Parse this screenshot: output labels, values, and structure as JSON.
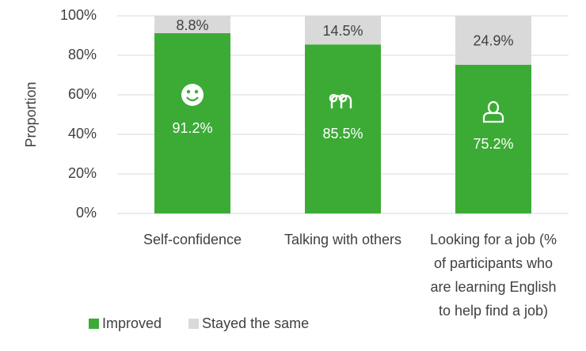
{
  "chart_data": {
    "type": "stacked_bar",
    "y_label": "Proportion",
    "categories": [
      "Self-confidence",
      "Talking with others",
      "Looking for a job (% of participants who are learning English to help find a job)"
    ],
    "series": [
      {
        "name": "Improved",
        "color": "#3cab36",
        "values": [
          91.2,
          85.5,
          75.2
        ],
        "value_labels": [
          "91.2%",
          "85.5%",
          "75.2%"
        ]
      },
      {
        "name": "Stayed the same",
        "color": "#d9d9d9",
        "values": [
          8.8,
          14.5,
          24.9
        ],
        "value_labels": [
          "8.8%",
          "14.5%",
          "24.9%"
        ]
      }
    ],
    "ylim": [
      0,
      100
    ],
    "yticks": [
      {
        "value": 0,
        "label": "0%"
      },
      {
        "value": 20,
        "label": "20%"
      },
      {
        "value": 40,
        "label": "40%"
      },
      {
        "value": 60,
        "label": "60%"
      },
      {
        "value": 80,
        "label": "80%"
      },
      {
        "value": 100,
        "label": "100%"
      }
    ],
    "grid": true
  }
}
